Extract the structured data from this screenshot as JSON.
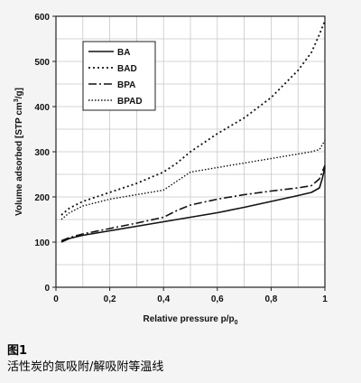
{
  "caption": {
    "label": "图1",
    "text": "活性炭的氮吸附/解吸附等温线"
  },
  "chart_data": {
    "type": "line",
    "title": "",
    "xlabel": "Relative pressure p/p",
    "xlabel_sub": "0",
    "ylabel": "Volume adsorbed [STP cm",
    "ylabel_sup": "3",
    "ylabel_end": "/g]",
    "xlim": [
      0,
      1
    ],
    "ylim": [
      0,
      600
    ],
    "xticks": [
      0,
      0.2,
      0.4,
      0.6,
      0.8,
      1
    ],
    "xtick_labels": [
      "0",
      "0,2",
      "0,4",
      "0,6",
      "0,8",
      "1"
    ],
    "yticks": [
      0,
      100,
      200,
      300,
      400,
      500,
      600
    ],
    "ytick_labels": [
      "0",
      "100",
      "200",
      "300",
      "400",
      "500",
      "600"
    ],
    "grid": true,
    "legend_position": "top-left",
    "series": [
      {
        "name": "BA",
        "style": "solid",
        "x": [
          0.02,
          0.05,
          0.1,
          0.2,
          0.3,
          0.4,
          0.5,
          0.6,
          0.7,
          0.8,
          0.9,
          0.95,
          0.98,
          0.99,
          1.0
        ],
        "y": [
          100,
          108,
          115,
          125,
          135,
          145,
          155,
          165,
          177,
          190,
          203,
          210,
          220,
          240,
          265
        ]
      },
      {
        "name": "BAD",
        "style": "dotted",
        "x": [
          0.02,
          0.05,
          0.1,
          0.2,
          0.3,
          0.4,
          0.45,
          0.5,
          0.6,
          0.7,
          0.8,
          0.9,
          0.95,
          0.98,
          1.0
        ],
        "y": [
          160,
          175,
          190,
          210,
          230,
          255,
          275,
          300,
          340,
          375,
          420,
          480,
          520,
          560,
          590
        ]
      },
      {
        "name": "BPA",
        "style": "dashdot",
        "x": [
          0.02,
          0.05,
          0.1,
          0.2,
          0.3,
          0.4,
          0.45,
          0.5,
          0.6,
          0.7,
          0.8,
          0.9,
          0.95,
          0.98,
          1.0
        ],
        "y": [
          103,
          110,
          118,
          130,
          142,
          155,
          170,
          182,
          195,
          205,
          213,
          220,
          225,
          240,
          270
        ]
      },
      {
        "name": "BPAD",
        "style": "dotted-fine",
        "x": [
          0.02,
          0.05,
          0.1,
          0.2,
          0.3,
          0.4,
          0.45,
          0.5,
          0.6,
          0.7,
          0.8,
          0.9,
          0.95,
          0.98,
          1.0
        ],
        "y": [
          150,
          165,
          180,
          195,
          205,
          215,
          235,
          255,
          265,
          275,
          285,
          295,
          300,
          305,
          325
        ]
      }
    ]
  }
}
